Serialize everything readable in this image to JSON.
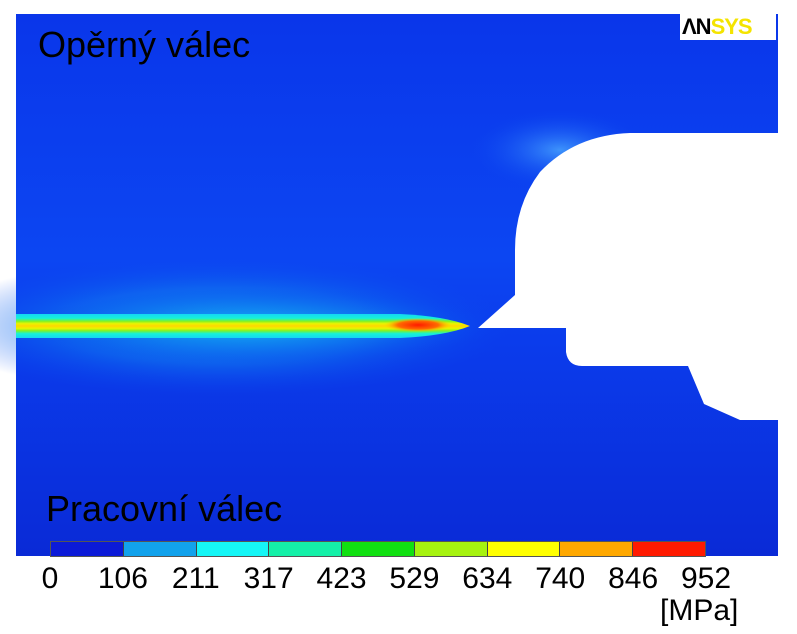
{
  "labels": {
    "top_region": "Opěrný válec",
    "bottom_region": "Pracovní válec"
  },
  "logo": {
    "part1": "ΛN",
    "part2": "SYS"
  },
  "legend": {
    "ticks": [
      "0",
      "106",
      "211",
      "317",
      "423",
      "529",
      "634",
      "740",
      "846",
      "952"
    ],
    "unit": "[MPa]",
    "colors": [
      "#0b1ad8",
      "#12a2ec",
      "#15f6f6",
      "#14f0a8",
      "#11e011",
      "#a6f20f",
      "#ffff00",
      "#ffa800",
      "#ff1a00"
    ]
  },
  "colors": {
    "field_base": "#0a3df0",
    "field_dark": "#0a22d6",
    "hotspot": "#ff1a00"
  }
}
